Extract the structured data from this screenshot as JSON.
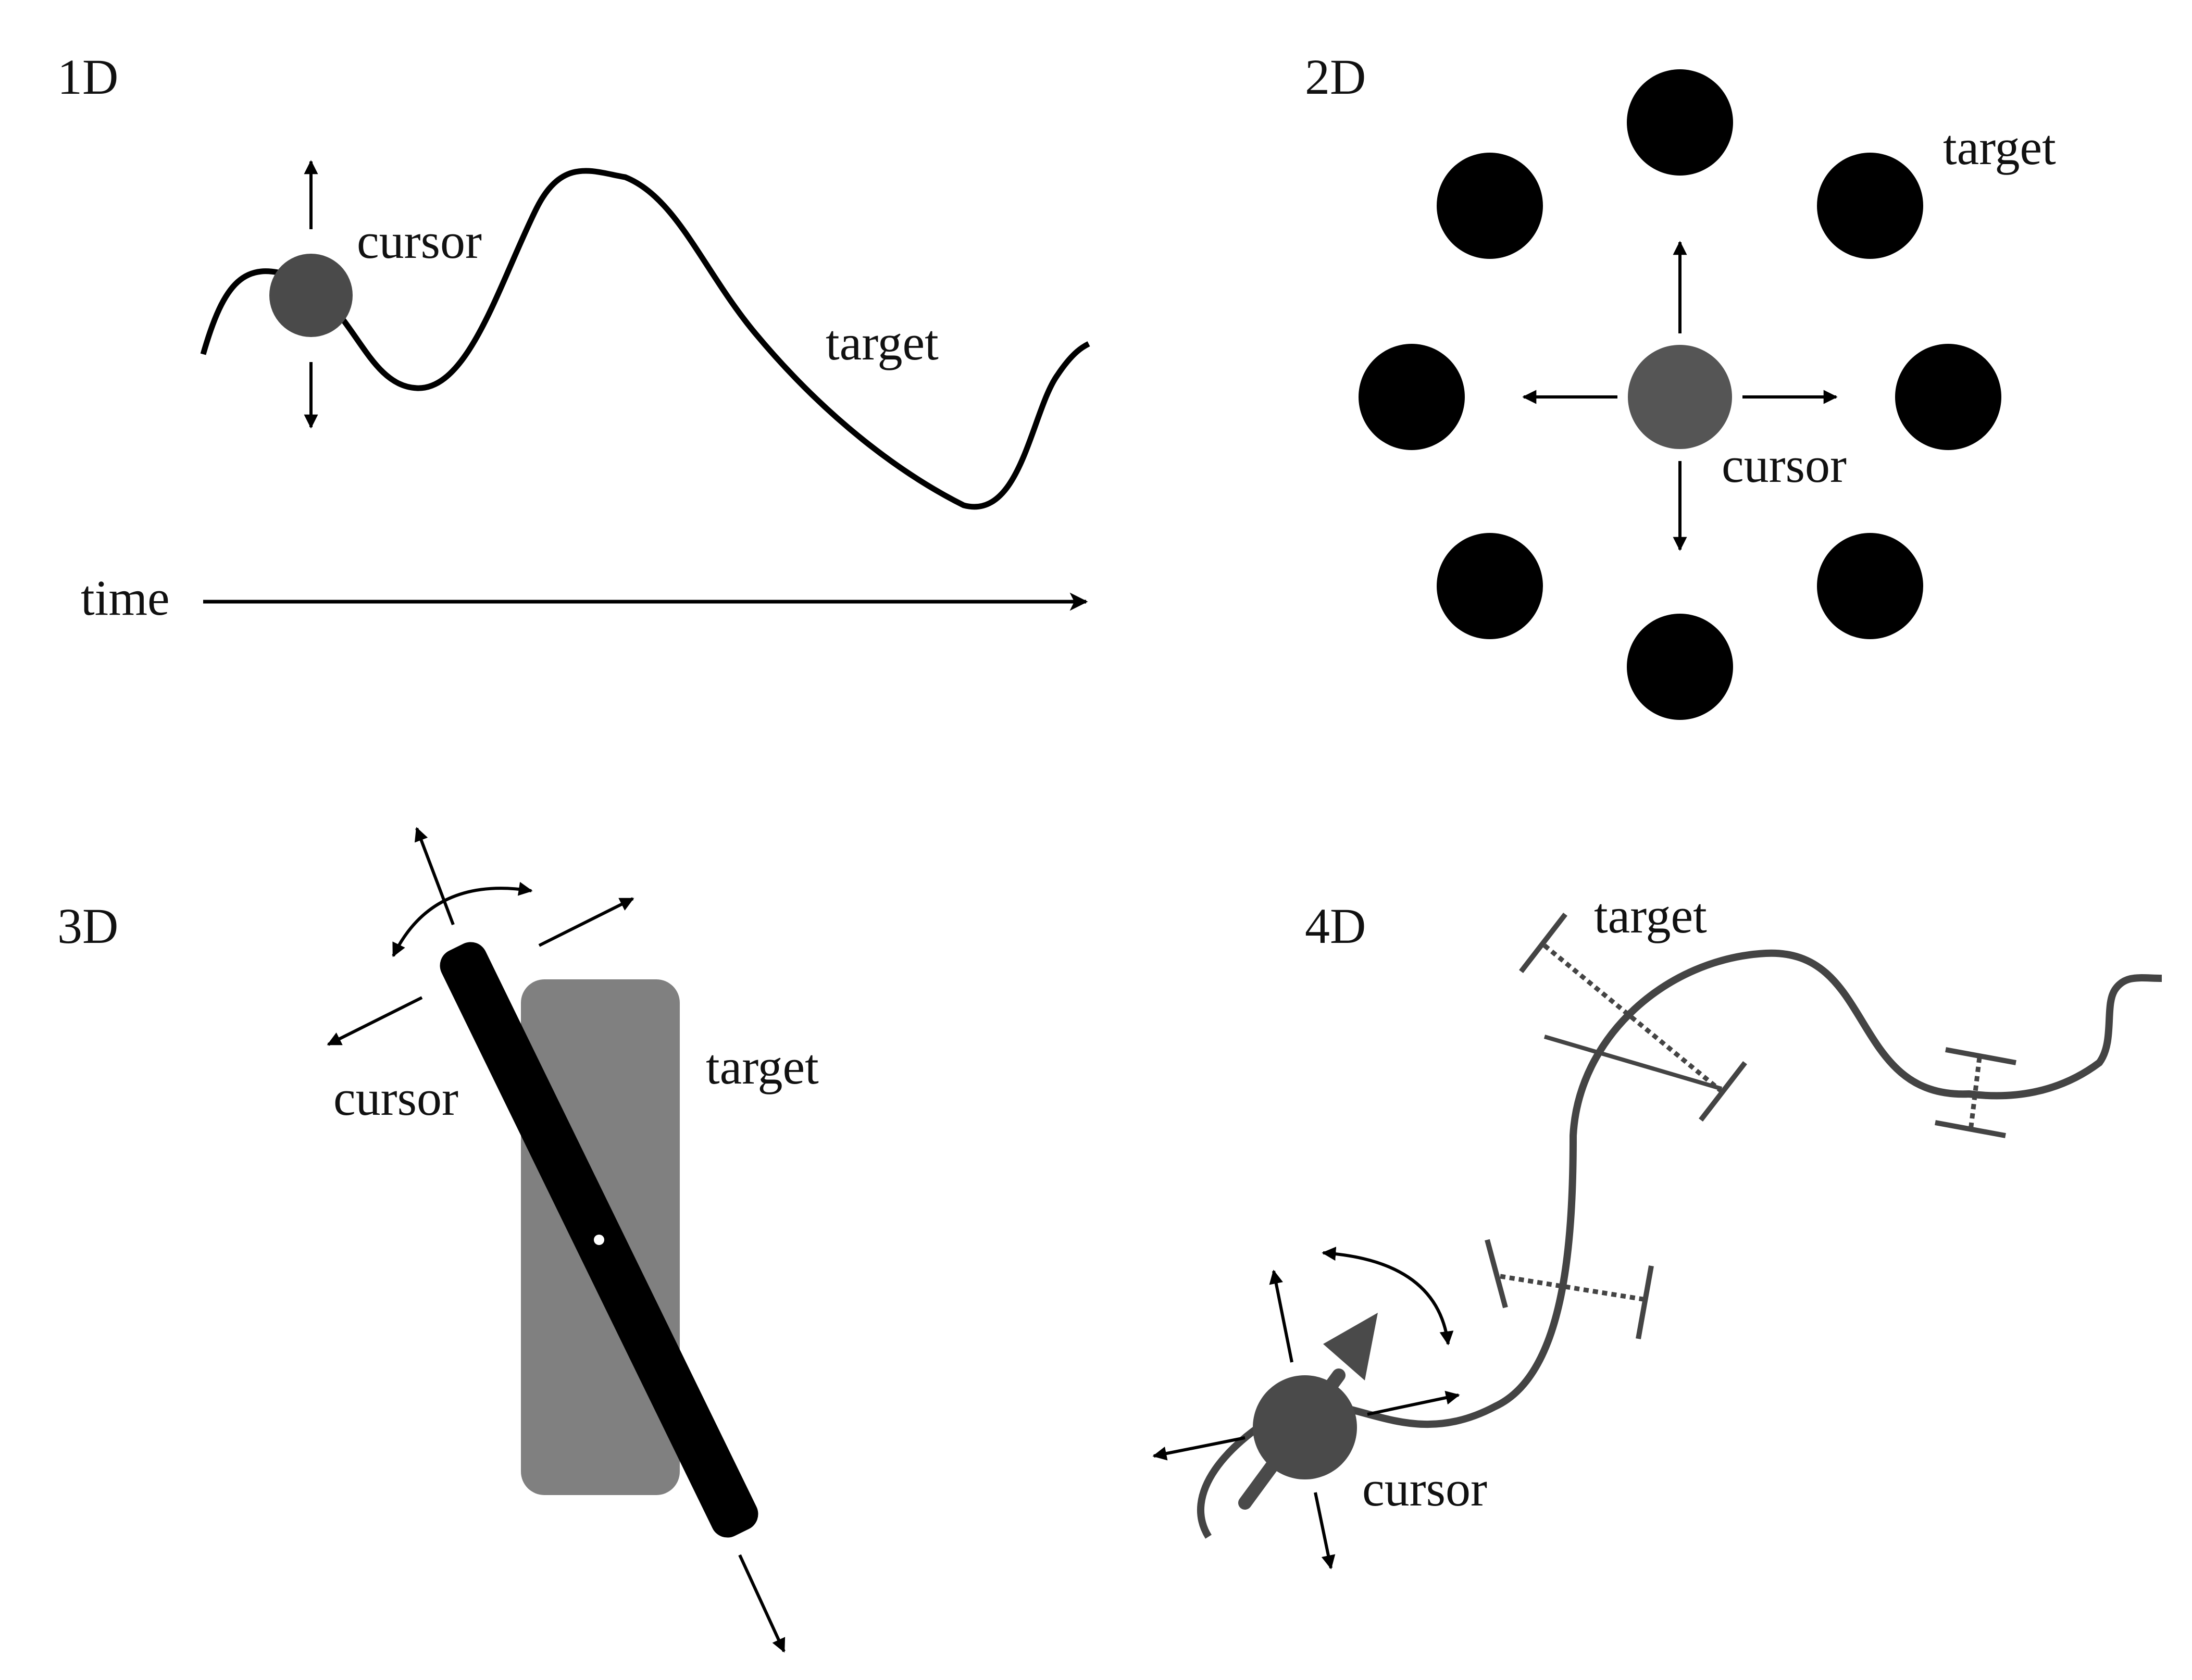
{
  "panels": {
    "p1": {
      "label": "1D",
      "cursor_label": "cursor",
      "target_label": "target",
      "time_label": "time"
    },
    "p2": {
      "label": "2D",
      "cursor_label": "cursor",
      "target_label": "target"
    },
    "p3": {
      "label": "3D",
      "cursor_label": "cursor",
      "target_label": "target"
    },
    "p4": {
      "label": "4D",
      "cursor_label": "cursor",
      "target_label": "target"
    }
  },
  "colors": {
    "ink": "#000000",
    "cursor_dark": "#4a4a4a",
    "cursor_mid": "#555555",
    "target_gray": "#808080",
    "curve_gray": "#444444"
  }
}
